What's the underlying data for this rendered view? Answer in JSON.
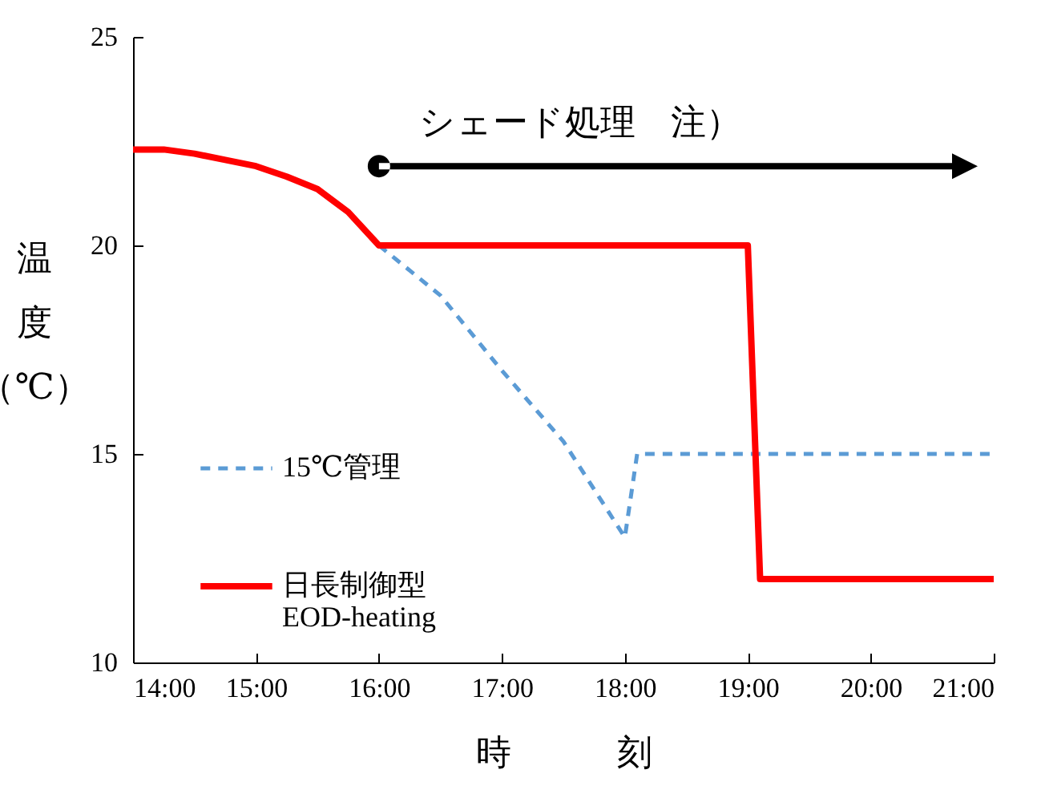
{
  "chart_data": {
    "type": "line",
    "xlabel": "時　　　刻",
    "ylabel": "温度（℃）",
    "xlim": [
      14,
      21
    ],
    "xticks": [
      {
        "value": 14,
        "label": "14:00"
      },
      {
        "value": 15,
        "label": "15:00"
      },
      {
        "value": 16,
        "label": "16:00"
      },
      {
        "value": 17,
        "label": "17:00"
      },
      {
        "value": 18,
        "label": "18:00"
      },
      {
        "value": 19,
        "label": "19:00"
      },
      {
        "value": 20,
        "label": "20:00"
      },
      {
        "value": 21,
        "label": "21:00"
      }
    ],
    "ylim": [
      10,
      25
    ],
    "yticks": [
      10,
      15,
      20,
      25
    ],
    "legend": "left",
    "series": [
      {
        "name": "15℃管理",
        "color": "#5b9bd5",
        "line_style": "dashed",
        "x": [
          16,
          16.5,
          17,
          17.5,
          18,
          18.1,
          21
        ],
        "values": [
          20,
          18.8,
          17,
          15.3,
          13,
          15,
          15
        ]
      },
      {
        "name": "日長制御型\nEOD-heating",
        "color": "#ff0000",
        "line_style": "solid",
        "x": [
          14,
          14.25,
          14.5,
          14.75,
          15,
          15.25,
          15.5,
          15.75,
          16,
          19,
          19.1,
          21
        ],
        "values": [
          22.3,
          22.3,
          22.2,
          22.05,
          21.9,
          21.65,
          21.35,
          20.8,
          20,
          20,
          12,
          12
        ]
      }
    ],
    "annotations": [
      {
        "text": "シェード処理　注）",
        "x": 16,
        "y": 21.9
      }
    ]
  }
}
